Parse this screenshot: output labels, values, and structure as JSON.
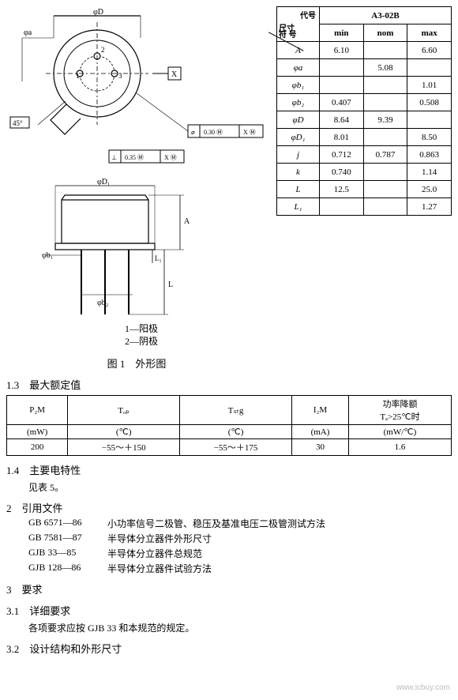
{
  "dim_table": {
    "partno": "A3-02B",
    "header_diag_top": "代号",
    "header_diag_bottom_left": "尺寸",
    "header_diag_bottom_symbol": "符 号",
    "cols": [
      "min",
      "nom",
      "max"
    ],
    "rows": [
      {
        "sym": "A",
        "min": "6.10",
        "nom": "",
        "max": "6.60"
      },
      {
        "sym": "φa",
        "min": "",
        "nom": "5.08",
        "max": ""
      },
      {
        "sym": "φb₁",
        "min": "",
        "nom": "",
        "max": "1.01"
      },
      {
        "sym": "φb₂",
        "min": "0.407",
        "nom": "",
        "max": "0.508"
      },
      {
        "sym": "φD",
        "min": "8.64",
        "nom": "9.39",
        "max": ""
      },
      {
        "sym": "φD₁",
        "min": "8.01",
        "nom": "",
        "max": "8.50"
      },
      {
        "sym": "j",
        "min": "0.712",
        "nom": "0.787",
        "max": "0.863"
      },
      {
        "sym": "k",
        "min": "0.740",
        "nom": "",
        "max": "1.14"
      },
      {
        "sym": "L",
        "min": "12.5",
        "nom": "",
        "max": "25.0"
      },
      {
        "sym": "L₁",
        "min": "",
        "nom": "",
        "max": "1.27"
      }
    ]
  },
  "diagram": {
    "labels": {
      "phiD": "φD",
      "phia": "φa",
      "angle45": "45°",
      "tol1": "⌀ | 0.30 Ⓜ | X Ⓜ",
      "tol2": "⌀ | 0.35 Ⓜ | X Ⓜ",
      "datumX": "X",
      "phiD1": "φD₁",
      "A": "A",
      "phib1": "φb₁",
      "phib2": "φb₂",
      "L": "L",
      "L1": "L₁",
      "pin1": "1",
      "pin2": "2",
      "pin3": "3"
    },
    "legend": {
      "line1": "1—阳极",
      "line2": "2—阴极"
    },
    "caption": "图 1　外形图"
  },
  "sections": {
    "s13": "1.3　最大额定值",
    "s14": "1.4　主要电特性",
    "s14_body": "见表 5。",
    "s2": "2　引用文件",
    "s3": "3　要求",
    "s31": "3.1　详细要求",
    "s31_body": "各项要求应按 GJB 33 和本规范的规定。",
    "s32": "3.2　设计结构和外形尺寸"
  },
  "rating_table": {
    "headers": [
      {
        "top": "P₂M",
        "bottom": "(mW)"
      },
      {
        "top": "Tₒₚ",
        "bottom": "(℃)"
      },
      {
        "top": "Tₛₜg",
        "bottom": "(℃)"
      },
      {
        "top": "I₂M",
        "bottom": "(mA)"
      },
      {
        "top": "功率降额\nTₐ>25℃时",
        "bottom": "(mW/℃)"
      }
    ],
    "row": [
      "200",
      "−55～＋150",
      "−55～＋175",
      "30",
      "1.6"
    ]
  },
  "references": [
    {
      "code": "GB 6571—86",
      "title": "小功率信号二极管、稳压及基准电压二极管测试方法"
    },
    {
      "code": "GB 7581—87",
      "title": "半导体分立器件外形尺寸"
    },
    {
      "code": "GJB 33—85",
      "title": "半导体分立器件总规范"
    },
    {
      "code": "GJB 128—86",
      "title": "半导体分立器件试验方法"
    }
  ],
  "watermark": "www.icbuy.com"
}
